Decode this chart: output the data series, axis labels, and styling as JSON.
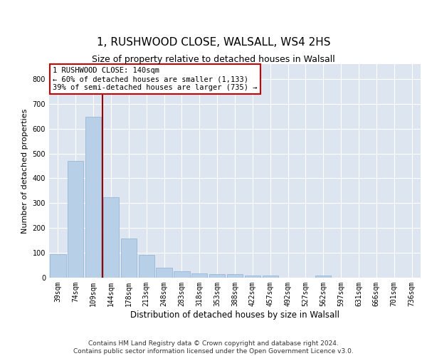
{
  "title": "1, RUSHWOOD CLOSE, WALSALL, WS4 2HS",
  "subtitle": "Size of property relative to detached houses in Walsall",
  "xlabel": "Distribution of detached houses by size in Walsall",
  "ylabel": "Number of detached properties",
  "categories": [
    "39sqm",
    "74sqm",
    "109sqm",
    "144sqm",
    "178sqm",
    "213sqm",
    "248sqm",
    "283sqm",
    "318sqm",
    "353sqm",
    "388sqm",
    "422sqm",
    "457sqm",
    "492sqm",
    "527sqm",
    "562sqm",
    "597sqm",
    "631sqm",
    "666sqm",
    "701sqm",
    "736sqm"
  ],
  "values": [
    95,
    470,
    648,
    325,
    158,
    92,
    40,
    25,
    17,
    15,
    14,
    10,
    8,
    0,
    0,
    8,
    0,
    0,
    0,
    0,
    0
  ],
  "bar_color": "#b8cfe8",
  "bar_edge_color": "#8fb0d8",
  "vline_color": "#990000",
  "annotation_text": "1 RUSHWOOD CLOSE: 140sqm\n← 60% of detached houses are smaller (1,133)\n39% of semi-detached houses are larger (735) →",
  "annotation_box_color": "white",
  "annotation_box_edge": "#cc0000",
  "ylim": [
    0,
    860
  ],
  "yticks": [
    0,
    100,
    200,
    300,
    400,
    500,
    600,
    700,
    800
  ],
  "background_color": "#dde5f0",
  "grid_color": "white",
  "footer": "Contains HM Land Registry data © Crown copyright and database right 2024.\nContains public sector information licensed under the Open Government Licence v3.0.",
  "title_fontsize": 11,
  "xlabel_fontsize": 8.5,
  "ylabel_fontsize": 8,
  "tick_fontsize": 7,
  "footer_fontsize": 6.5
}
